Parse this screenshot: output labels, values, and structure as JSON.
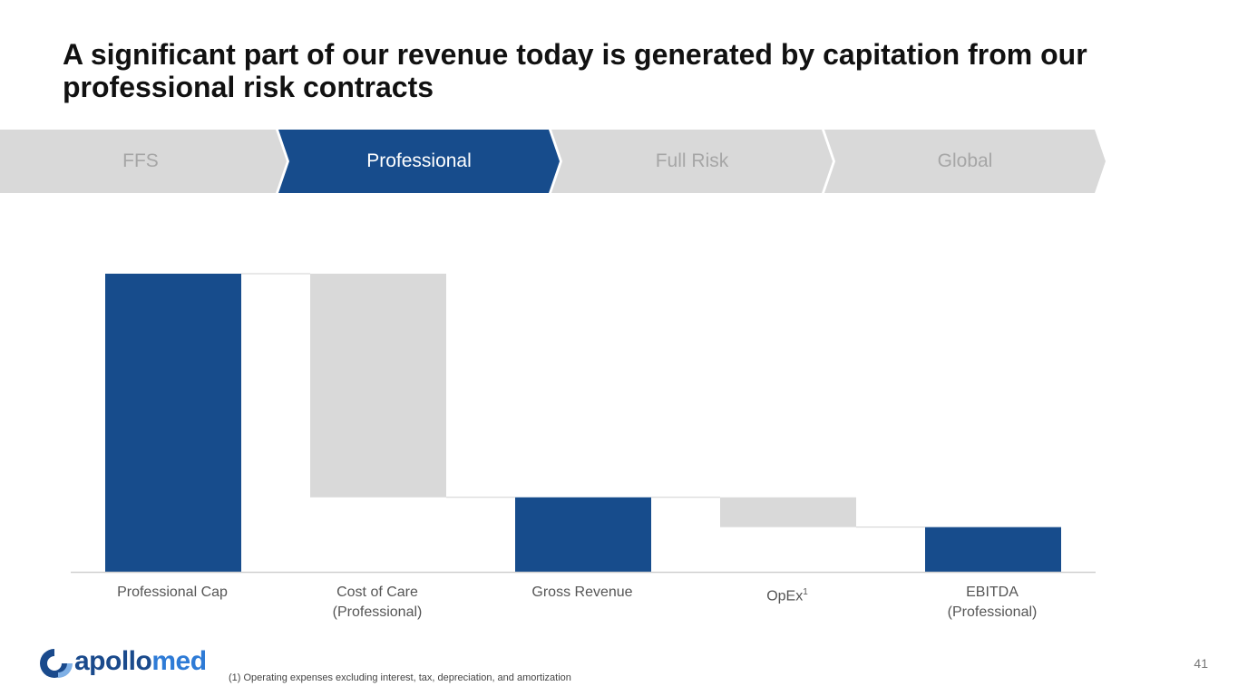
{
  "title": {
    "line1": "A significant part of our revenue today is generated by capitation from our",
    "line2": "professional risk contracts"
  },
  "stages": [
    {
      "label": "FFS",
      "active": false
    },
    {
      "label": "Professional",
      "active": true
    },
    {
      "label": "Full Risk",
      "active": false
    },
    {
      "label": "Global",
      "active": false
    }
  ],
  "colors": {
    "active_stage": "#174c8c",
    "inactive_stage": "#d9d9d9",
    "total_bar": "#174c8c",
    "decrease_bar": "#d9d9d9",
    "axis": "#d0d0d0"
  },
  "chart_data": {
    "type": "bar",
    "subtype": "waterfall",
    "title": "",
    "xlabel": "",
    "ylabel": "",
    "categories": [
      "Professional Cap",
      "Cost of Care (Professional)",
      "Gross Revenue",
      "OpEx1",
      "EBITDA (Professional)"
    ],
    "category_labels": [
      {
        "line1": "Professional Cap",
        "line2": ""
      },
      {
        "line1": "Cost of Care",
        "line2": "(Professional)"
      },
      {
        "line1": "Gross Revenue",
        "line2": ""
      },
      {
        "line1": "OpEx",
        "sup": "1",
        "line2": ""
      },
      {
        "line1": "EBITDA",
        "line2": "(Professional)"
      }
    ],
    "bars": [
      {
        "name": "Professional Cap",
        "kind": "total",
        "start": 0,
        "end": 100
      },
      {
        "name": "Cost of Care (Professional)",
        "kind": "decrease",
        "start": 100,
        "end": 25
      },
      {
        "name": "Gross Revenue",
        "kind": "total",
        "start": 0,
        "end": 25
      },
      {
        "name": "OpEx",
        "kind": "decrease",
        "start": 25,
        "end": 15
      },
      {
        "name": "EBITDA (Professional)",
        "kind": "total",
        "start": 0,
        "end": 15
      }
    ],
    "ylim": [
      0,
      100
    ],
    "grid": false,
    "legend": "none",
    "data_labels": false
  },
  "footnote": "(1) Operating expenses excluding interest, tax, depreciation, and amortization",
  "logo": {
    "text_part1": "apollo",
    "text_part2": "med"
  },
  "page_number": "41"
}
